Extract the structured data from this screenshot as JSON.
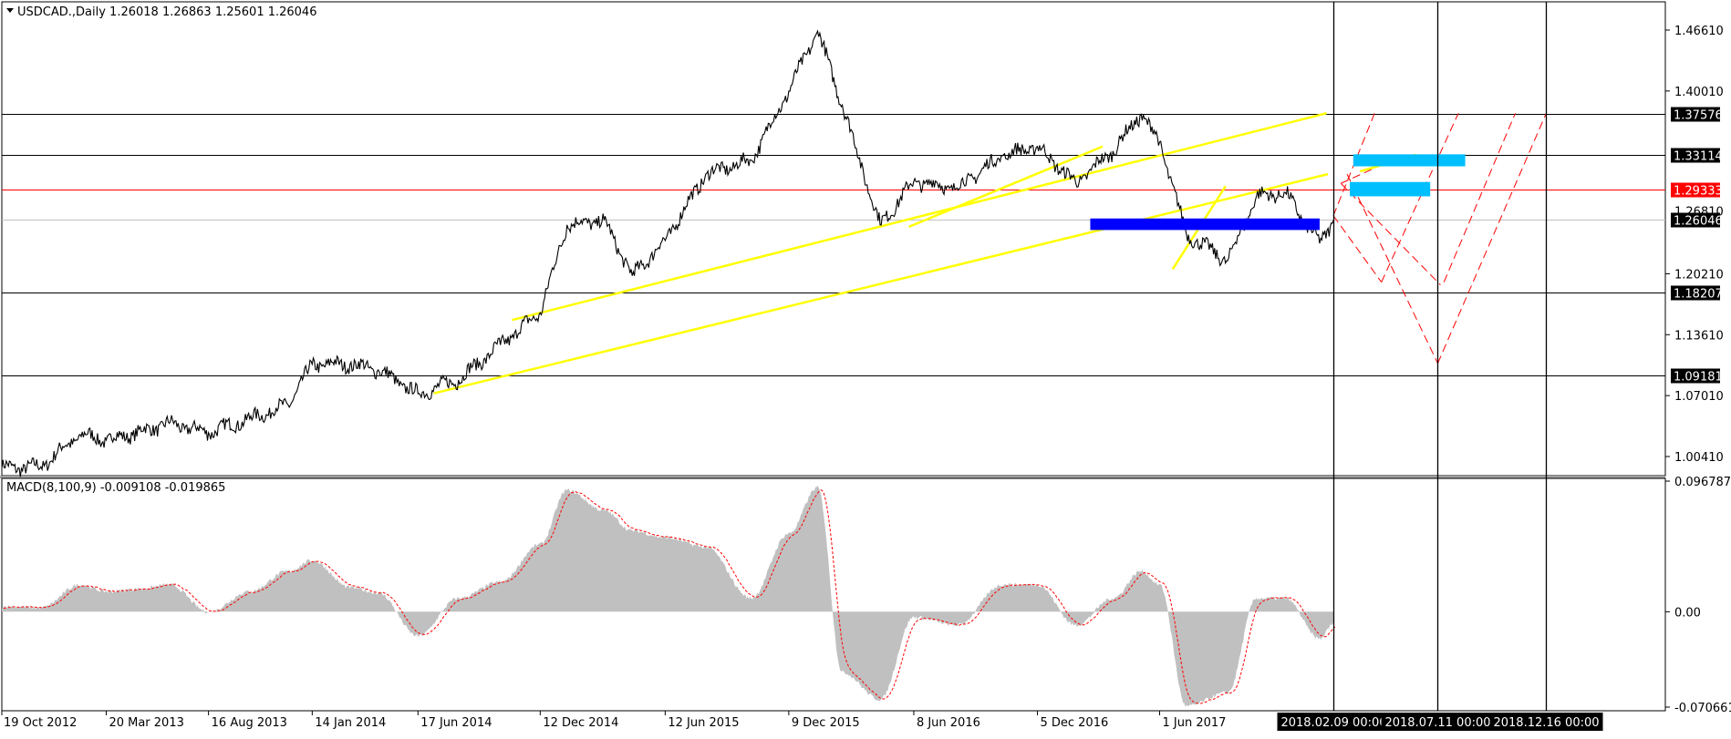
{
  "header": {
    "symbol_line": "USDCAD.,Daily  1.26018 1.26863 1.25601 1.26046",
    "dropdown_icon": "triangle-down-icon"
  },
  "indicator": {
    "label": "MACD(8,100,9) -0.009108 -0.019865"
  },
  "price_axis": {
    "ticks": [
      "1.46610",
      "1.40010",
      "1.20210",
      "1.13610",
      "1.07010",
      "1.00410"
    ],
    "partial_tick": "1.26810"
  },
  "macd_axis": {
    "ticks": [
      "0.096787",
      "0.00",
      "-0.070661"
    ]
  },
  "levels": [
    {
      "label": "1.37576",
      "value": 1.37576,
      "color": "#000000",
      "tag_bg": "#000000"
    },
    {
      "label": "1.33114",
      "value": 1.33114,
      "color": "#000000",
      "tag_bg": "#000000"
    },
    {
      "label": "1.29333",
      "value": 1.29333,
      "color": "#ff0000",
      "tag_bg": "#ff0000"
    },
    {
      "label": "1.26046",
      "value": 1.26046,
      "color": "#c0c0c0",
      "tag_bg": "#000000"
    },
    {
      "label": "1.18207",
      "value": 1.18207,
      "color": "#000000",
      "tag_bg": "#000000"
    },
    {
      "label": "1.09181",
      "value": 1.09181,
      "color": "#000000",
      "tag_bg": "#000000"
    }
  ],
  "time_axis": {
    "labels": [
      "19 Oct 2012",
      "20 Mar 2013",
      "16 Aug 2013",
      "14 Jan 2014",
      "17 Jun 2014",
      "12 Dec 2014",
      "12 Jun 2015",
      "9 Dec 2015",
      "8 Jun 2016",
      "5 Dec 2016",
      "1 Jun 2017"
    ],
    "highlighted": [
      "2018.02.09 00:00",
      "2018.07.11 00:00",
      "2018.12.16 00:00"
    ]
  },
  "colors": {
    "trendline": "#ffff00",
    "macd_histogram": "#c0c0c0",
    "macd_signal": "#ff0000",
    "support_box": "#0000ff",
    "target_boxes": "#00bfff",
    "projection": "#ff0000"
  },
  "chart_data": {
    "type": "line",
    "symbol": "USDCAD.",
    "timeframe": "Daily",
    "ohlc_last": {
      "open": 1.26018,
      "high": 1.26863,
      "low": 1.25601,
      "close": 1.26046
    },
    "ylim": [
      0.98,
      1.485
    ],
    "x": [
      "2012-10-19",
      "2012-12-15",
      "2013-02-10",
      "2013-03-20",
      "2013-05-10",
      "2013-06-20",
      "2013-08-16",
      "2013-10-15",
      "2013-12-10",
      "2014-01-14",
      "2014-03-10",
      "2014-04-20",
      "2014-06-17",
      "2014-08-15",
      "2014-10-15",
      "2014-12-12",
      "2015-01-20",
      "2015-03-15",
      "2015-04-25",
      "2015-06-12",
      "2015-08-10",
      "2015-10-15",
      "2015-12-09",
      "2016-01-20",
      "2016-02-25",
      "2016-04-20",
      "2016-06-08",
      "2016-08-10",
      "2016-10-15",
      "2016-12-05",
      "2017-01-30",
      "2017-03-25",
      "2017-05-05",
      "2017-06-01",
      "2017-07-10",
      "2017-09-08",
      "2017-10-20",
      "2017-12-01",
      "2018-01-20",
      "2018-02-09"
    ],
    "series": [
      {
        "values": [
          0.992,
          0.993,
          1.028,
          1.022,
          1.031,
          1.04,
          1.03,
          1.045,
          1.06,
          1.104,
          1.104,
          1.098,
          1.072,
          1.087,
          1.125,
          1.16,
          1.255,
          1.26,
          1.2,
          1.238,
          1.31,
          1.325,
          1.4,
          1.465,
          1.385,
          1.255,
          1.302,
          1.295,
          1.33,
          1.34,
          1.3,
          1.335,
          1.375,
          1.345,
          1.245,
          1.216,
          1.286,
          1.29,
          1.235,
          1.26
        ]
      }
    ],
    "macd": {
      "name": "MACD(8,100,9)",
      "ylim": [
        -0.070661,
        0.096787
      ],
      "values": [
        0.004,
        0.003,
        0.02,
        0.015,
        0.017,
        0.02,
        0.0,
        0.015,
        0.03,
        0.038,
        0.018,
        0.014,
        -0.018,
        0.01,
        0.022,
        0.05,
        0.09,
        0.075,
        0.06,
        0.055,
        0.048,
        0.01,
        0.058,
        0.092,
        -0.045,
        -0.065,
        -0.004,
        -0.01,
        0.02,
        0.02,
        -0.01,
        0.01,
        0.03,
        0.02,
        -0.07,
        -0.06,
        0.01,
        0.01,
        -0.02,
        -0.009
      ],
      "signal_last": -0.019865,
      "macd_last": -0.009108
    }
  }
}
